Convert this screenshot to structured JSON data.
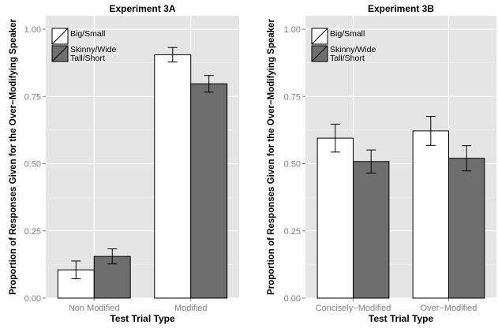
{
  "chart_data": [
    {
      "type": "bar",
      "title": "Experiment 3A",
      "xlabel": "Test Trial Type",
      "ylabel": "Proportion of Responses Given for the Over−Modifying Speaker",
      "categories": [
        "Non Modified",
        "Modified"
      ],
      "ylim": [
        0,
        1.05
      ],
      "yticks": [
        "0.00",
        "0.25",
        "0.50",
        "0.75",
        "1.00"
      ],
      "grid": true,
      "legend_position": "top-left",
      "series": [
        {
          "name": "Big/Small",
          "color": "#ffffff",
          "values": [
            0.105,
            0.905
          ],
          "err_low": [
            0.072,
            0.878
          ],
          "err_high": [
            0.138,
            0.932
          ]
        },
        {
          "name": "Skinny/Wide Tall/Short",
          "color": "#6e6e6e",
          "values": [
            0.155,
            0.797
          ],
          "err_low": [
            0.127,
            0.766
          ],
          "err_high": [
            0.183,
            0.828
          ]
        }
      ]
    },
    {
      "type": "bar",
      "title": "Experiment 3B",
      "xlabel": "Test Trial Type",
      "ylabel": "Proportion of Responses Given for the Over−Modifying Speaker",
      "categories": [
        "Concisely−Modified",
        "Over−Modified"
      ],
      "ylim": [
        0,
        1.05
      ],
      "yticks": [
        "0.00",
        "0.25",
        "0.50",
        "0.75",
        "1.00"
      ],
      "grid": true,
      "legend_position": "top-left",
      "series": [
        {
          "name": "Big/Small",
          "color": "#ffffff",
          "values": [
            0.595,
            0.622
          ],
          "err_low": [
            0.543,
            0.568
          ],
          "err_high": [
            0.647,
            0.676
          ]
        },
        {
          "name": "Skinny/Wide Tall/Short",
          "color": "#6e6e6e",
          "values": [
            0.508,
            0.52
          ],
          "err_low": [
            0.465,
            0.473
          ],
          "err_high": [
            0.551,
            0.567
          ]
        }
      ]
    }
  ],
  "legend": {
    "entry1": "Big/Small",
    "entry2_line1": "Skinny/Wide",
    "entry2_line2": "Tall/Short"
  }
}
